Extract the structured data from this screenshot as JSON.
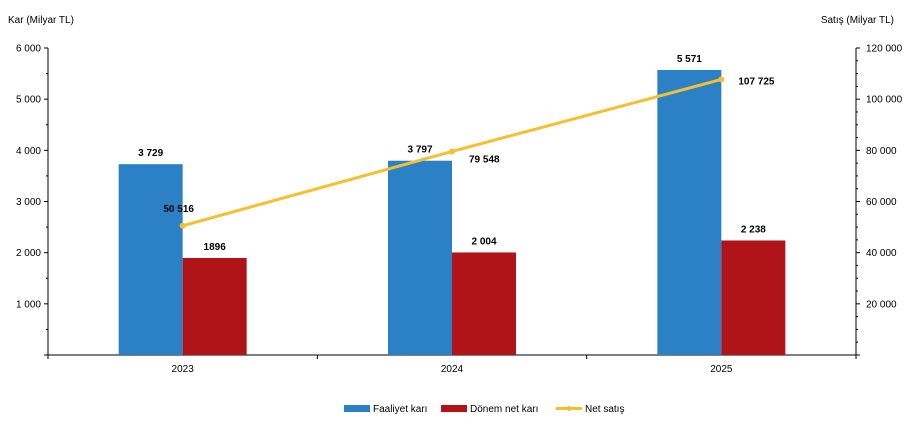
{
  "chart_data": {
    "type": "bar",
    "left_axis_label": "Kar (Milyar TL)",
    "right_axis_label": "Satış (Milyar TL)",
    "categories": [
      "2023",
      "2024",
      "2025"
    ],
    "left_ylim": [
      0,
      6000
    ],
    "left_ticks": [
      1000,
      2000,
      3000,
      4000,
      5000,
      6000
    ],
    "left_tick_labels": [
      "1 000",
      "2 000",
      "3 000",
      "4 000",
      "5 000",
      "6 000"
    ],
    "right_ylim": [
      0,
      120000
    ],
    "right_ticks": [
      20000,
      40000,
      60000,
      80000,
      100000,
      120000
    ],
    "right_tick_labels": [
      "20 000",
      "40 000",
      "60 000",
      "80 000",
      "100 000",
      "120 000"
    ],
    "series": [
      {
        "name": "Faaliyet karı",
        "type": "bar",
        "axis": "left",
        "color": "#2b80c6",
        "values": [
          3729,
          3797,
          5571
        ],
        "labels": [
          "3 729",
          "3 797",
          "5 571"
        ]
      },
      {
        "name": "Dönem net karı",
        "type": "bar",
        "axis": "left",
        "color": "#b01418",
        "values": [
          1896,
          2004,
          2238
        ],
        "labels": [
          "1896",
          "2 004",
          "2 238"
        ]
      },
      {
        "name": "Net satış",
        "type": "line",
        "axis": "right",
        "color": "#f4c031",
        "values": [
          50516,
          79548,
          107725
        ],
        "labels": [
          "50 516",
          "79 548",
          "107 725"
        ]
      }
    ],
    "legend_position": "bottom",
    "grid": false
  }
}
